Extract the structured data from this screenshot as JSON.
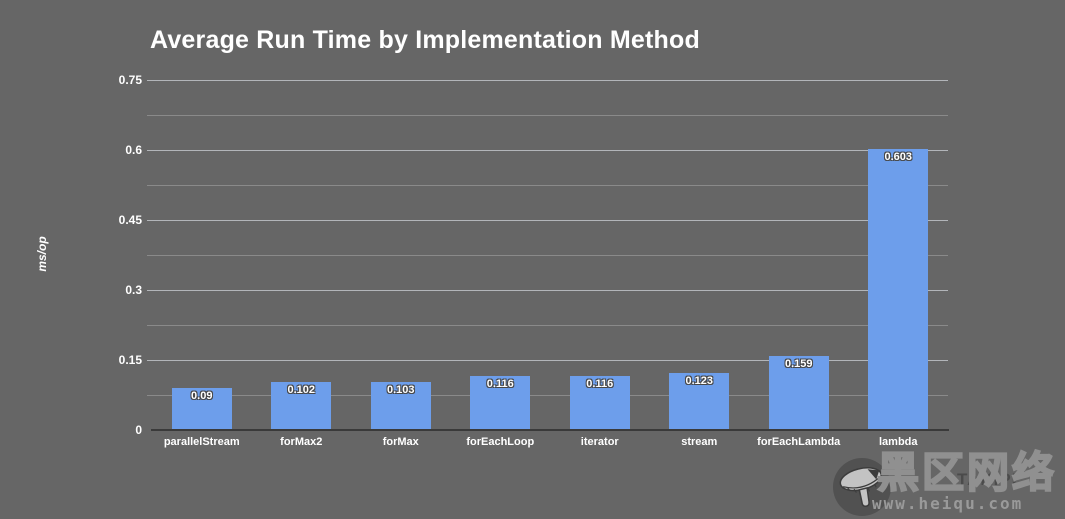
{
  "page": {
    "background_color": "#666666"
  },
  "chart_data": {
    "type": "bar",
    "title": "Average Run Time by Implementation Method",
    "xlabel": "",
    "ylabel": "ms/op",
    "categories": [
      "parallelStream",
      "forMax2",
      "forMax",
      "forEachLoop",
      "iterator",
      "stream",
      "forEachLambda",
      "lambda"
    ],
    "values": [
      0.09,
      0.102,
      0.103,
      0.116,
      0.116,
      0.123,
      0.159,
      0.603
    ],
    "value_labels": [
      "0.09",
      "0.102",
      "0.103",
      "0.116",
      "0.116",
      "0.123",
      "0.159",
      "0.603"
    ],
    "ylim": [
      0,
      0.75
    ],
    "yticks": [
      0,
      0.15,
      0.3,
      0.45,
      0.6,
      0.75
    ],
    "ytick_labels": [
      "0",
      "0.15",
      "0.3",
      "0.45",
      "0.6",
      "0.75"
    ],
    "minor_yticks": [
      0.075,
      0.225,
      0.375,
      0.525,
      0.675
    ],
    "grid": true,
    "legend": false,
    "bar_color": "#6d9eeb",
    "background_color": "#666666",
    "text_color": "#ffffff"
  },
  "watermark": {
    "brand_text": "TAKIPI",
    "site_name": "黑区网络",
    "site_url": "www.heiqu.com",
    "icon": "shuttlecock-icon"
  },
  "colors": {
    "grid_major": "#b2b5b9",
    "grid_minor": "#8a8a8a",
    "axis_baseline": "#3a3a3a",
    "brand_text_color": "#4b4b4b",
    "watermark_color": "#909090"
  }
}
